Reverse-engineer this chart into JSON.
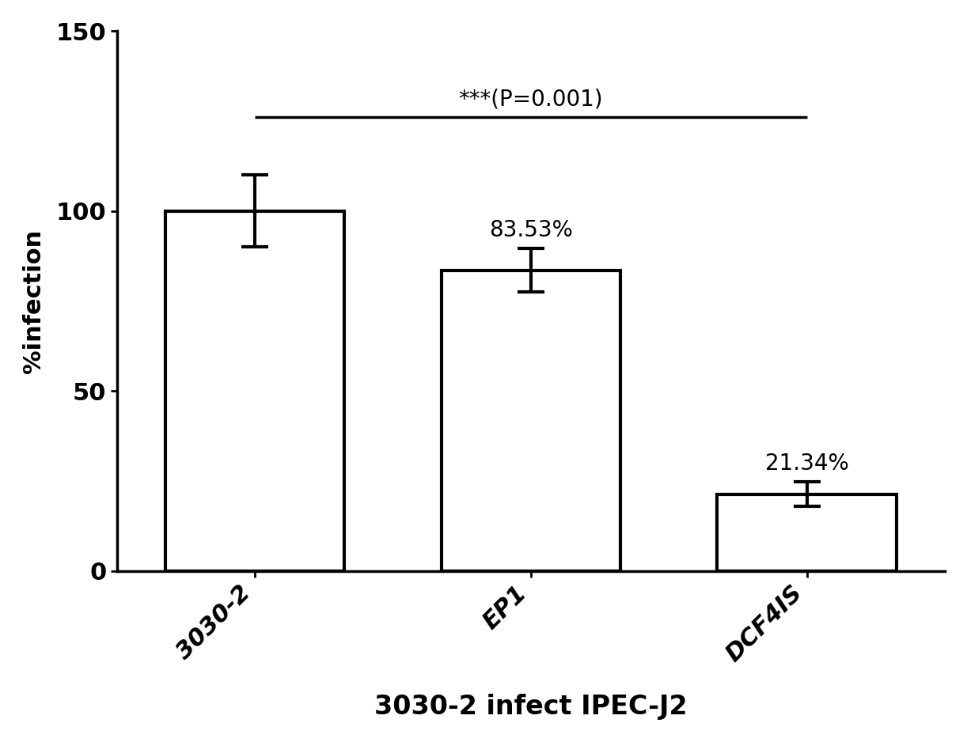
{
  "categories": [
    "3030-2",
    "EP1",
    "DCF4IS"
  ],
  "values": [
    100.0,
    83.53,
    21.34
  ],
  "errors": [
    10.0,
    6.0,
    3.5
  ],
  "bar_color": "#ffffff",
  "bar_edgecolor": "#000000",
  "bar_linewidth": 3.0,
  "ylabel": "%infection",
  "xlabel": "3030-2 infect IPEC-J2",
  "ylim": [
    0,
    150
  ],
  "yticks": [
    0,
    50,
    100,
    150
  ],
  "bar_labels": [
    "",
    "83.53%",
    "21.34%"
  ],
  "significance_text": "***(P=0.001)",
  "sig_line_y": 126,
  "label_fontsize": 20,
  "tick_fontsize": 22,
  "bar_label_fontsize": 20,
  "xlabel_fontsize": 24,
  "ylabel_fontsize": 22,
  "background_color": "#ffffff",
  "bar_width": 0.65,
  "xlim": [
    -0.5,
    2.5
  ]
}
